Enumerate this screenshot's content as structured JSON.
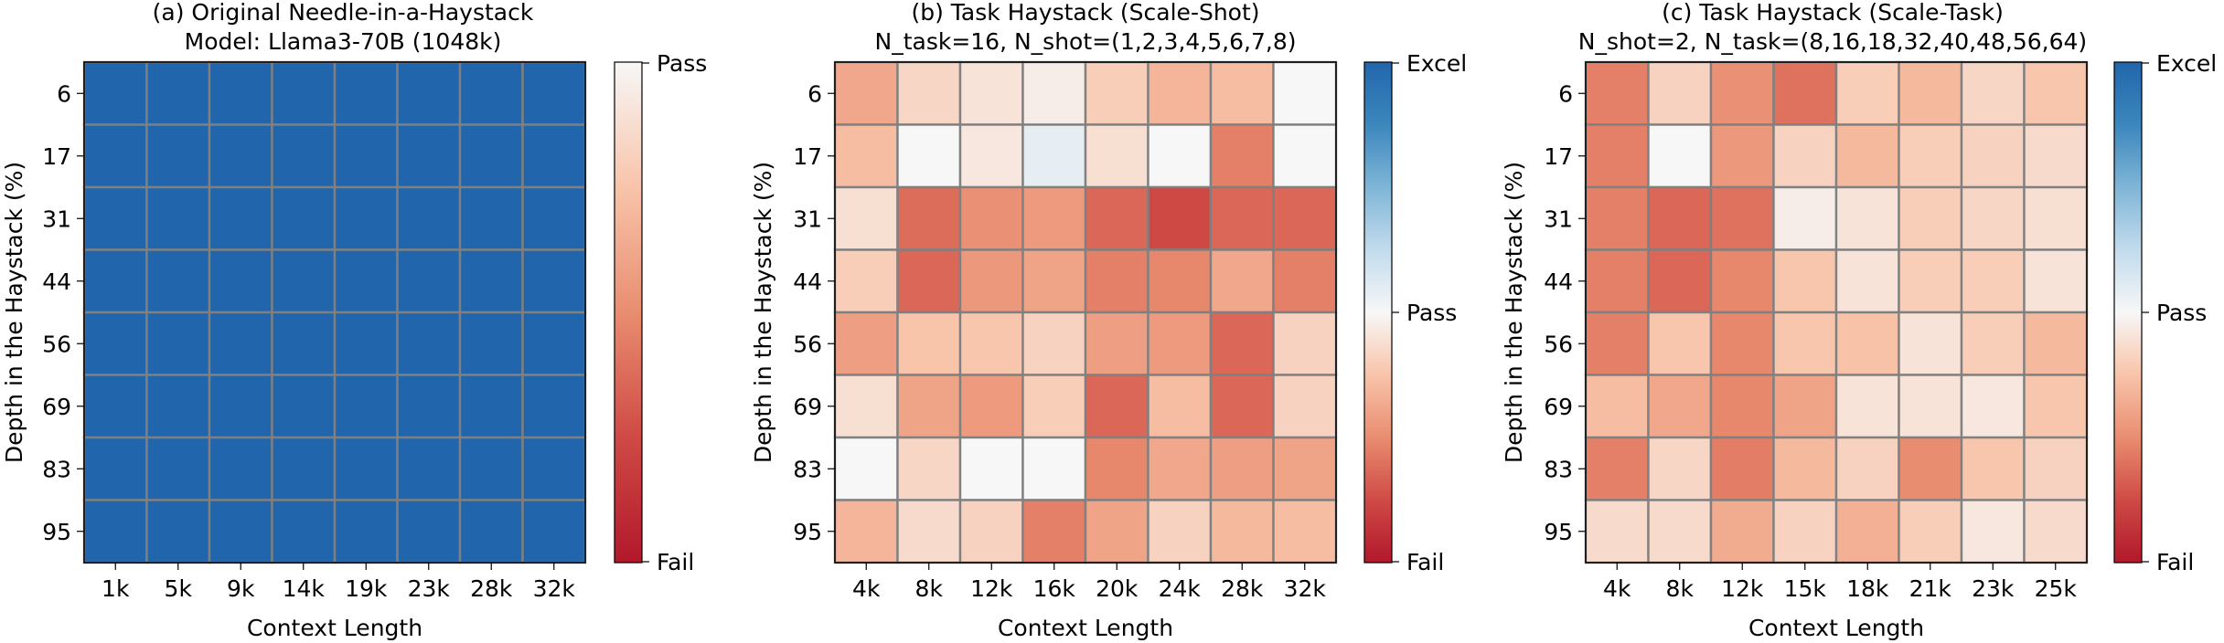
{
  "chart_data": [
    {
      "type": "heatmap",
      "title": "(a) Original Needle-in-a-Haystack",
      "subtitle": "Model: Llama3-70B (1048k)",
      "xlabel": "Context Length",
      "ylabel": "Depth in the Haystack (%)",
      "x_categories": [
        "1k",
        "5k",
        "9k",
        "14k",
        "19k",
        "23k",
        "28k",
        "32k"
      ],
      "y_categories": [
        "6",
        "17",
        "31",
        "44",
        "56",
        "69",
        "83",
        "95"
      ],
      "colorbar_labels": {
        "top": "Pass",
        "bottom": "Fail"
      },
      "vmin": 0.0,
      "vmax": 1.0,
      "values": [
        [
          1,
          1,
          1,
          1,
          1,
          1,
          1,
          1
        ],
        [
          1,
          1,
          1,
          1,
          1,
          1,
          1,
          1
        ],
        [
          1,
          1,
          1,
          1,
          1,
          1,
          1,
          1
        ],
        [
          1,
          1,
          1,
          1,
          1,
          1,
          1,
          1
        ],
        [
          1,
          1,
          1,
          1,
          1,
          1,
          1,
          1
        ],
        [
          1,
          1,
          1,
          1,
          1,
          1,
          1,
          1
        ],
        [
          1,
          1,
          1,
          1,
          1,
          1,
          1,
          1
        ],
        [
          1,
          1,
          1,
          1,
          1,
          1,
          1,
          1
        ]
      ]
    },
    {
      "type": "heatmap",
      "title": "(b) Task Haystack (Scale-Shot)",
      "subtitle": "N_task=16, N_shot=(1,2,3,4,5,6,7,8)",
      "xlabel": "Context Length",
      "ylabel": "Depth in the Haystack (%)",
      "x_categories": [
        "4k",
        "8k",
        "12k",
        "16k",
        "20k",
        "24k",
        "28k",
        "32k"
      ],
      "y_categories": [
        "6",
        "17",
        "31",
        "44",
        "56",
        "69",
        "83",
        "95"
      ],
      "colorbar_labels": {
        "top": "Excel",
        "middle": "Pass",
        "bottom": "Fail"
      },
      "vmin": 0.0,
      "vmax": 2.0,
      "values": [
        [
          0.62,
          0.84,
          0.9,
          0.95,
          0.8,
          0.68,
          0.72,
          1.0
        ],
        [
          0.72,
          1.0,
          0.92,
          1.08,
          0.88,
          1.0,
          0.45,
          1.0
        ],
        [
          0.88,
          0.38,
          0.52,
          0.56,
          0.36,
          0.24,
          0.36,
          0.36
        ],
        [
          0.8,
          0.36,
          0.55,
          0.6,
          0.45,
          0.48,
          0.62,
          0.45
        ],
        [
          0.58,
          0.75,
          0.76,
          0.82,
          0.58,
          0.56,
          0.36,
          0.82
        ],
        [
          0.88,
          0.6,
          0.56,
          0.8,
          0.36,
          0.72,
          0.36,
          0.82
        ],
        [
          1.0,
          0.84,
          1.0,
          1.0,
          0.48,
          0.62,
          0.58,
          0.6
        ],
        [
          0.68,
          0.86,
          0.82,
          0.45,
          0.6,
          0.82,
          0.7,
          0.72
        ]
      ]
    },
    {
      "type": "heatmap",
      "title": "(c) Task Haystack (Scale-Task)",
      "subtitle": "N_shot=2, N_task=(8,16,18,32,40,48,56,64)",
      "xlabel": "Context Length",
      "ylabel": "Depth in the Haystack (%)",
      "x_categories": [
        "4k",
        "8k",
        "12k",
        "15k",
        "18k",
        "21k",
        "23k",
        "25k"
      ],
      "y_categories": [
        "6",
        "17",
        "31",
        "44",
        "56",
        "69",
        "83",
        "95"
      ],
      "colorbar_labels": {
        "top": "Excel",
        "middle": "Pass",
        "bottom": "Fail"
      },
      "vmin": 0.0,
      "vmax": 2.0,
      "values": [
        [
          0.45,
          0.82,
          0.52,
          0.4,
          0.8,
          0.7,
          0.84,
          0.76
        ],
        [
          0.45,
          1.0,
          0.55,
          0.82,
          0.7,
          0.8,
          0.82,
          0.86
        ],
        [
          0.45,
          0.36,
          0.4,
          0.95,
          0.9,
          0.8,
          0.84,
          0.88
        ],
        [
          0.45,
          0.36,
          0.48,
          0.76,
          0.9,
          0.8,
          0.8,
          0.9
        ],
        [
          0.45,
          0.76,
          0.48,
          0.76,
          0.74,
          0.9,
          0.8,
          0.7
        ],
        [
          0.72,
          0.62,
          0.48,
          0.6,
          0.9,
          0.9,
          0.92,
          0.76
        ],
        [
          0.45,
          0.84,
          0.44,
          0.7,
          0.82,
          0.5,
          0.76,
          0.82
        ],
        [
          0.86,
          0.86,
          0.64,
          0.82,
          0.66,
          0.8,
          0.92,
          0.86
        ]
      ]
    }
  ]
}
